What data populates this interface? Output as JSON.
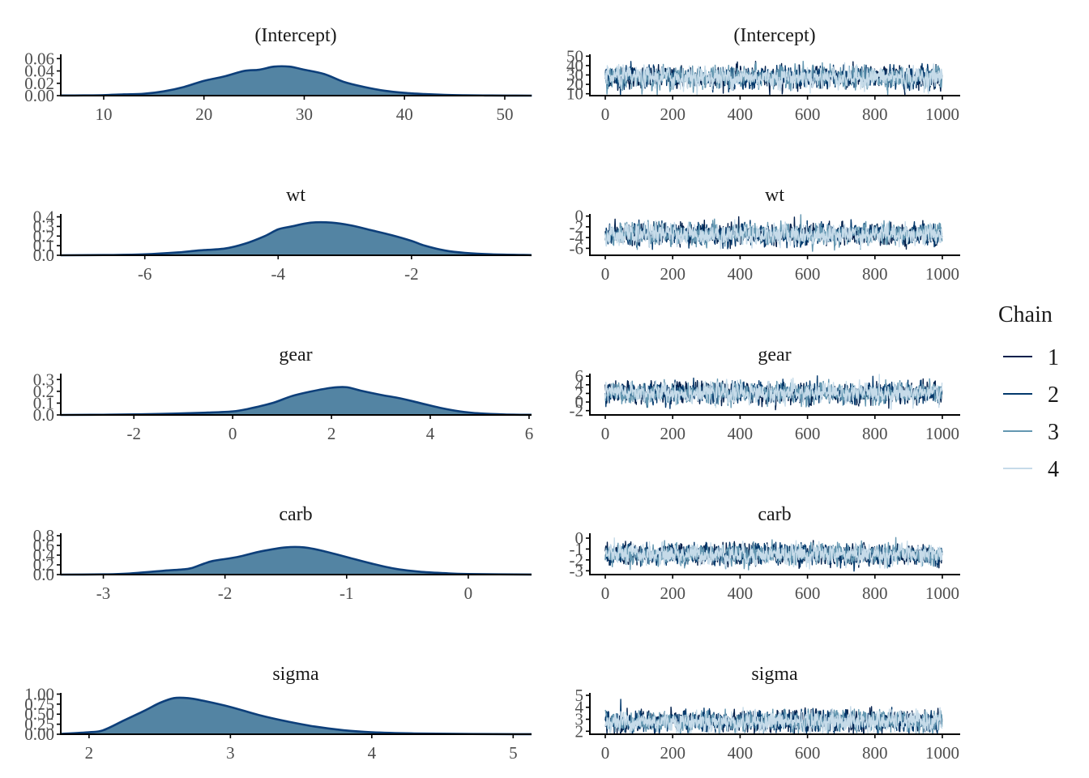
{
  "chart_data": {
    "type": "line",
    "description": "MCMC diagnostics: posterior density (left) and trace plots (right) per parameter",
    "legend": {
      "title": "Chain",
      "position": "right",
      "entries": [
        {
          "label": "1",
          "color": "#011f4b"
        },
        {
          "label": "2",
          "color": "#03396c"
        },
        {
          "label": "3",
          "color": "#6497b1"
        },
        {
          "label": "4",
          "color": "#c6dbe9"
        }
      ]
    },
    "density_style": {
      "fill": "#5384a3",
      "line": "#0d3f7a"
    },
    "parameters": [
      {
        "name": "(Intercept)",
        "density": {
          "xlim": [
            5.72,
            52.67
          ],
          "ylim": [
            0,
            0.067
          ],
          "x_ticks": [
            10,
            20,
            30,
            40,
            50
          ],
          "y_ticks": [
            "0.00",
            "0.02",
            "0.04",
            "0.06"
          ],
          "y_tick_values": [
            0,
            0.02,
            0.04,
            0.06
          ],
          "points": [
            [
              5.7,
              0.0002
            ],
            [
              8,
              0.0004
            ],
            [
              10,
              0.0008
            ],
            [
              12,
              0.002
            ],
            [
              14,
              0.003
            ],
            [
              16,
              0.007
            ],
            [
              18,
              0.014
            ],
            [
              20,
              0.024
            ],
            [
              22,
              0.031
            ],
            [
              24,
              0.04
            ],
            [
              25.5,
              0.042
            ],
            [
              27,
              0.047
            ],
            [
              28.5,
              0.047
            ],
            [
              30,
              0.042
            ],
            [
              32,
              0.035
            ],
            [
              34,
              0.022
            ],
            [
              36,
              0.014
            ],
            [
              38,
              0.008
            ],
            [
              40,
              0.0045
            ],
            [
              42,
              0.0025
            ],
            [
              44,
              0.0012
            ],
            [
              46,
              0.0006
            ],
            [
              48,
              0.0003
            ],
            [
              50,
              0.0001
            ],
            [
              52.7,
              0.0
            ]
          ]
        },
        "trace": {
          "xlim": [
            -55,
            1065
          ],
          "ylim": [
            8,
            52
          ],
          "x_ticks": [
            0,
            200,
            400,
            600,
            800,
            1000
          ],
          "y_ticks": [
            "10",
            "20",
            "30",
            "40",
            "50"
          ],
          "y_tick_values": [
            10,
            20,
            30,
            40,
            50
          ],
          "mean": 27.5,
          "sd": 5.5,
          "iterations": 1000
        }
      },
      {
        "name": "wt",
        "density": {
          "xlim": [
            -7.26,
            -0.2
          ],
          "ylim": [
            0,
            0.43
          ],
          "x_ticks": [
            -6,
            -4,
            -2
          ],
          "y_ticks": [
            "0.0",
            "0.1",
            "0.2",
            "0.3",
            "0.4"
          ],
          "y_tick_values": [
            0,
            0.1,
            0.2,
            0.3,
            0.4
          ],
          "points": [
            [
              -7.26,
              0.0
            ],
            [
              -6.5,
              0.003
            ],
            [
              -6,
              0.01
            ],
            [
              -5.5,
              0.03
            ],
            [
              -5.2,
              0.05
            ],
            [
              -4.8,
              0.07
            ],
            [
              -4.5,
              0.12
            ],
            [
              -4.2,
              0.2
            ],
            [
              -4,
              0.27
            ],
            [
              -3.8,
              0.3
            ],
            [
              -3.5,
              0.34
            ],
            [
              -3.2,
              0.34
            ],
            [
              -2.9,
              0.31
            ],
            [
              -2.6,
              0.26
            ],
            [
              -2.3,
              0.21
            ],
            [
              -2,
              0.15
            ],
            [
              -1.8,
              0.1
            ],
            [
              -1.5,
              0.05
            ],
            [
              -1.2,
              0.025
            ],
            [
              -0.8,
              0.01
            ],
            [
              -0.2,
              0.002
            ]
          ]
        },
        "trace": {
          "xlim": [
            -55,
            1065
          ],
          "ylim": [
            -7.3,
            0.4
          ],
          "x_ticks": [
            0,
            200,
            400,
            600,
            800,
            1000
          ],
          "y_ticks": [
            "-6",
            "-4",
            "-2",
            "0"
          ],
          "y_tick_values": [
            -6,
            -4,
            -2,
            0
          ],
          "mean": -3.4,
          "sd": 0.95,
          "iterations": 1000
        }
      },
      {
        "name": "gear",
        "density": {
          "xlim": [
            -3.48,
            6.05
          ],
          "ylim": [
            0,
            0.35
          ],
          "x_ticks": [
            -2,
            0,
            2,
            4,
            6
          ],
          "y_ticks": [
            "0.0",
            "0.1",
            "0.2",
            "0.3"
          ],
          "y_tick_values": [
            0,
            0.1,
            0.2,
            0.3
          ],
          "points": [
            [
              -3.48,
              0.0
            ],
            [
              -2.5,
              0.002
            ],
            [
              -1.5,
              0.008
            ],
            [
              -0.5,
              0.02
            ],
            [
              0,
              0.03
            ],
            [
              0.3,
              0.05
            ],
            [
              0.8,
              0.1
            ],
            [
              1.2,
              0.16
            ],
            [
              1.6,
              0.2
            ],
            [
              2,
              0.23
            ],
            [
              2.3,
              0.235
            ],
            [
              2.6,
              0.205
            ],
            [
              3,
              0.17
            ],
            [
              3.4,
              0.14
            ],
            [
              3.8,
              0.1
            ],
            [
              4.2,
              0.06
            ],
            [
              4.6,
              0.03
            ],
            [
              5,
              0.013
            ],
            [
              5.5,
              0.004
            ],
            [
              6.05,
              0.001
            ]
          ]
        },
        "trace": {
          "xlim": [
            -55,
            1065
          ],
          "ylim": [
            -3.0,
            6.6
          ],
          "x_ticks": [
            0,
            200,
            400,
            600,
            800,
            1000
          ],
          "y_ticks": [
            "-2",
            "0",
            "2",
            "4",
            "6"
          ],
          "y_tick_values": [
            -2,
            0,
            2,
            4,
            6
          ],
          "mean": 2.1,
          "sd": 1.15,
          "iterations": 1000
        }
      },
      {
        "name": "carb",
        "density": {
          "xlim": [
            -3.35,
            0.52
          ],
          "ylim": [
            0,
            0.85
          ],
          "x_ticks": [
            -3,
            -2,
            -1,
            0
          ],
          "y_ticks": [
            "0.0",
            "0.2",
            "0.4",
            "0.6",
            "0.8"
          ],
          "y_tick_values": [
            0,
            0.2,
            0.4,
            0.6,
            0.8
          ],
          "points": [
            [
              -3.35,
              0.0
            ],
            [
              -3,
              0.005
            ],
            [
              -2.8,
              0.02
            ],
            [
              -2.5,
              0.08
            ],
            [
              -2.3,
              0.12
            ],
            [
              -2.2,
              0.2
            ],
            [
              -2.1,
              0.28
            ],
            [
              -1.9,
              0.36
            ],
            [
              -1.7,
              0.48
            ],
            [
              -1.5,
              0.56
            ],
            [
              -1.35,
              0.56
            ],
            [
              -1.2,
              0.49
            ],
            [
              -1,
              0.36
            ],
            [
              -0.8,
              0.23
            ],
            [
              -0.6,
              0.12
            ],
            [
              -0.4,
              0.06
            ],
            [
              -0.2,
              0.03
            ],
            [
              0,
              0.012
            ],
            [
              0.52,
              0.001
            ]
          ]
        },
        "trace": {
          "xlim": [
            -55,
            1065
          ],
          "ylim": [
            -3.35,
            0.45
          ],
          "x_ticks": [
            0,
            200,
            400,
            600,
            800,
            1000
          ],
          "y_ticks": [
            "-3",
            "-2",
            "-1",
            "0"
          ],
          "y_tick_values": [
            -3,
            -2,
            -1,
            0
          ],
          "mean": -1.5,
          "sd": 0.45,
          "iterations": 1000
        }
      },
      {
        "name": "sigma",
        "density": {
          "xlim": [
            1.8,
            5.13
          ],
          "ylim": [
            0,
            1.03
          ],
          "x_ticks": [
            2,
            3,
            4,
            5
          ],
          "y_ticks": [
            "0.00",
            "0.25",
            "0.50",
            "0.75",
            "1.00"
          ],
          "y_tick_values": [
            0,
            0.25,
            0.5,
            0.75,
            1.0
          ],
          "points": [
            [
              1.8,
              0.01
            ],
            [
              2,
              0.05
            ],
            [
              2.1,
              0.1
            ],
            [
              2.25,
              0.35
            ],
            [
              2.4,
              0.6
            ],
            [
              2.5,
              0.78
            ],
            [
              2.6,
              0.9
            ],
            [
              2.7,
              0.9
            ],
            [
              2.8,
              0.84
            ],
            [
              3,
              0.68
            ],
            [
              3.2,
              0.48
            ],
            [
              3.4,
              0.32
            ],
            [
              3.6,
              0.19
            ],
            [
              3.8,
              0.1
            ],
            [
              4,
              0.05
            ],
            [
              4.3,
              0.02
            ],
            [
              4.7,
              0.006
            ],
            [
              5.13,
              0.001
            ]
          ]
        },
        "trace": {
          "xlim": [
            -55,
            1065
          ],
          "ylim": [
            1.75,
            5.2
          ],
          "x_ticks": [
            0,
            200,
            400,
            600,
            800,
            1000
          ],
          "y_ticks": [
            "2",
            "3",
            "4",
            "5"
          ],
          "y_tick_values": [
            2,
            3,
            4,
            5
          ],
          "mean": 2.8,
          "sd": 0.42,
          "iterations": 1000
        }
      }
    ]
  }
}
